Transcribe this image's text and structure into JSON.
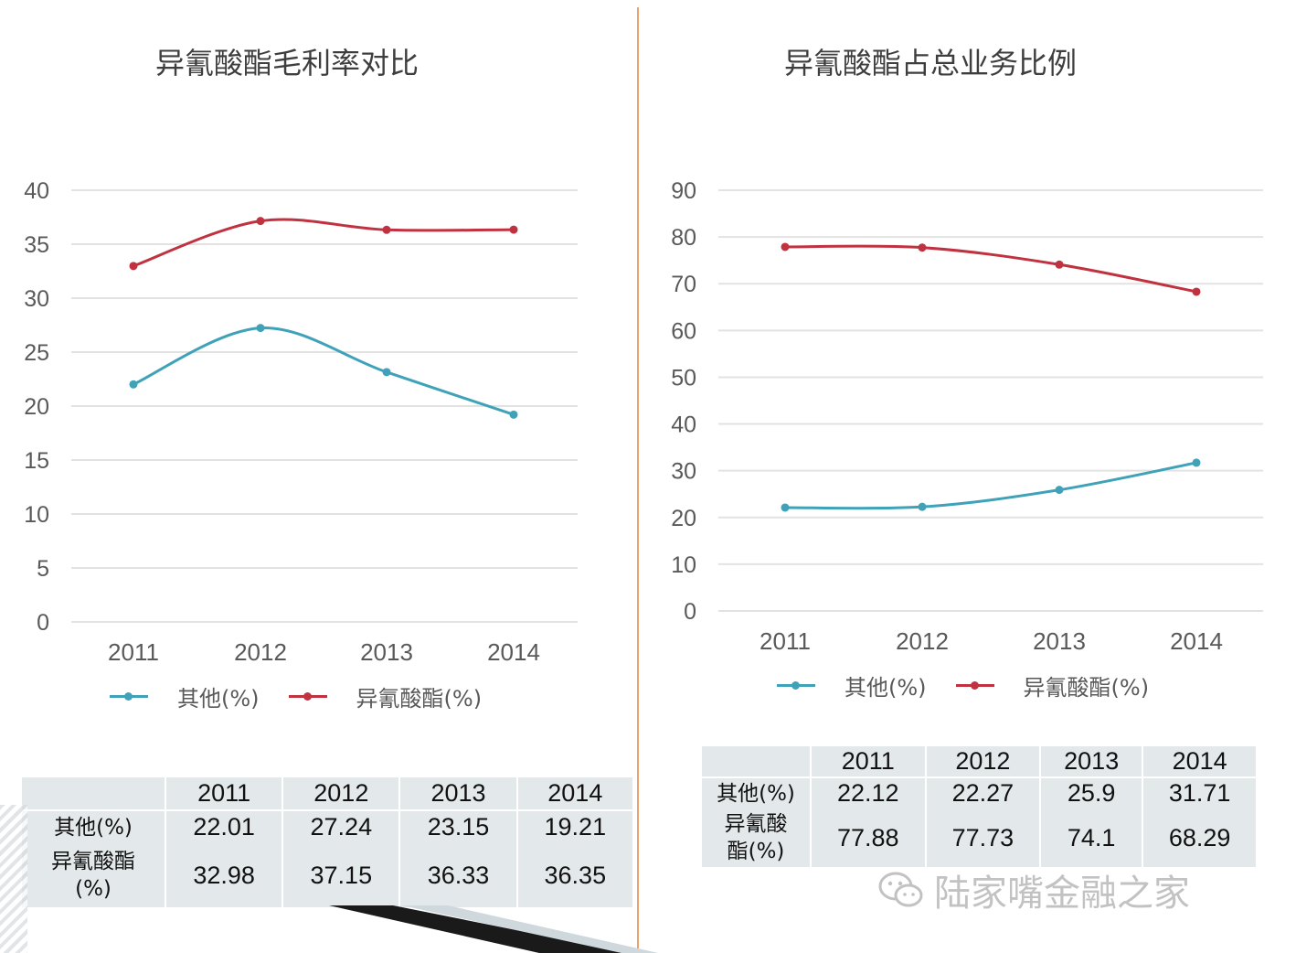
{
  "colors": {
    "other": "#3fa2b8",
    "isocyanate": "#c0323f",
    "grid": "#e2e2e2",
    "axis_text": "#595959"
  },
  "chart_data": [
    {
      "type": "line",
      "title": "异氰酸酯毛利率对比",
      "categories": [
        "2011",
        "2012",
        "2013",
        "2014"
      ],
      "ylim": [
        0,
        40
      ],
      "yticks": [
        "0",
        "5",
        "10",
        "15",
        "20",
        "25",
        "30",
        "35",
        "40"
      ],
      "grid": true,
      "legend_position": "bottom",
      "series": [
        {
          "name": "其他(%)",
          "values": [
            22.01,
            27.24,
            23.15,
            19.21
          ]
        },
        {
          "name": "异氰酸酯(%)",
          "values": [
            32.98,
            37.15,
            36.33,
            36.35
          ]
        }
      ],
      "table": {
        "header": [
          "",
          "2011",
          "2012",
          "2013",
          "2014"
        ],
        "rows": [
          {
            "label": "其他(%)",
            "values": [
              "22.01",
              "27.24",
              "23.15",
              "19.21"
            ]
          },
          {
            "label_lines": [
              "异氰酸酯",
              "(%)"
            ],
            "values": [
              "32.98",
              "37.15",
              "36.33",
              "36.35"
            ]
          }
        ]
      }
    },
    {
      "type": "line",
      "title": "异氰酸酯占总业务比例",
      "categories": [
        "2011",
        "2012",
        "2013",
        "2014"
      ],
      "ylim": [
        0,
        90
      ],
      "yticks": [
        "0",
        "10",
        "20",
        "30",
        "40",
        "50",
        "60",
        "70",
        "80",
        "90"
      ],
      "grid": true,
      "legend_position": "bottom",
      "series": [
        {
          "name": "其他(%)",
          "values": [
            22.12,
            22.27,
            25.9,
            31.71
          ]
        },
        {
          "name": "异氰酸酯(%)",
          "values": [
            77.88,
            77.73,
            74.1,
            68.29
          ]
        }
      ],
      "table": {
        "header": [
          "",
          "2011",
          "2012",
          "2013",
          "2014"
        ],
        "rows": [
          {
            "label": "其他(%)",
            "values": [
              "22.12",
              "22.27",
              "25.9",
              "31.71"
            ]
          },
          {
            "label_lines": [
              "异氰酸",
              "酯(%)"
            ],
            "values": [
              "77.88",
              "77.73",
              "74.1",
              "68.29"
            ]
          }
        ]
      }
    }
  ],
  "watermark": {
    "text": "陆家嘴金融之家",
    "icon": "wechat-icon"
  }
}
